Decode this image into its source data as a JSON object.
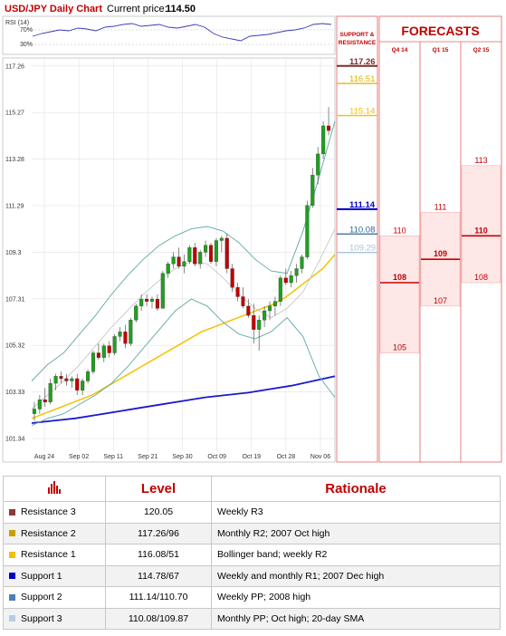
{
  "header": {
    "title": "USD/JPY Daily Chart",
    "current_price_label": "Current price:",
    "current_price": "114.50"
  },
  "rsi": {
    "label": "RSI (14)",
    "levels": [
      "70%",
      "30%"
    ]
  },
  "sr_panel": {
    "heading_line1": "SUPPORT &",
    "heading_line2": "RESISTANCE"
  },
  "forecast_panel": {
    "heading": "FORECASTS"
  },
  "colors": {
    "resistance3": "#7b2d2d",
    "resistance2": "#c8a000",
    "resistance1": "#f2c200",
    "support1": "#0000cc",
    "support2": "#336699",
    "support3": "#a8c4dc",
    "forecast": "#cc0000",
    "bull": "#1fa01f",
    "bear": "#c00000"
  },
  "chart_data": [
    {
      "type": "candlestick",
      "title": "USD/JPY Daily Chart",
      "x_ticks": [
        "Aug 24",
        "Sep 02",
        "Sep 11",
        "Sep 21",
        "Sep 30",
        "Oct 09",
        "Oct 19",
        "Oct 28",
        "Nov 06"
      ],
      "y_ticks": [
        101.34,
        103.33,
        105.32,
        107.31,
        109.3,
        111.29,
        113.28,
        115.27,
        117.26
      ],
      "ylim": [
        100.8,
        117.6
      ],
      "candles": [
        [
          102.4,
          102.9,
          102.1,
          102.6
        ],
        [
          102.6,
          103.2,
          102.4,
          103.0
        ],
        [
          103.0,
          103.5,
          102.7,
          102.9
        ],
        [
          102.9,
          103.9,
          102.8,
          103.7
        ],
        [
          103.7,
          104.1,
          103.4,
          104.0
        ],
        [
          104.0,
          104.2,
          103.7,
          103.9
        ],
        [
          103.9,
          104.1,
          103.6,
          103.8
        ],
        [
          103.8,
          104.0,
          103.5,
          103.9
        ],
        [
          103.9,
          104.1,
          103.2,
          103.4
        ],
        [
          103.4,
          103.9,
          103.2,
          103.8
        ],
        [
          103.8,
          104.3,
          103.7,
          104.2
        ],
        [
          104.2,
          105.1,
          104.1,
          105.0
        ],
        [
          105.0,
          105.4,
          104.7,
          104.8
        ],
        [
          104.8,
          105.4,
          104.6,
          105.3
        ],
        [
          105.3,
          105.5,
          104.8,
          105.0
        ],
        [
          105.0,
          105.8,
          104.9,
          105.7
        ],
        [
          105.7,
          106.1,
          105.5,
          105.9
        ],
        [
          105.9,
          106.2,
          105.2,
          105.4
        ],
        [
          105.4,
          106.5,
          105.3,
          106.4
        ],
        [
          106.4,
          107.1,
          106.3,
          107.0
        ],
        [
          107.0,
          107.5,
          106.8,
          107.3
        ],
        [
          107.3,
          107.5,
          107.0,
          107.2
        ],
        [
          107.2,
          107.4,
          106.9,
          107.3
        ],
        [
          107.3,
          107.5,
          106.8,
          106.9
        ],
        [
          106.9,
          108.5,
          106.9,
          108.4
        ],
        [
          108.4,
          108.9,
          108.2,
          108.8
        ],
        [
          108.8,
          109.3,
          108.6,
          109.1
        ],
        [
          109.1,
          109.5,
          108.6,
          108.7
        ],
        [
          108.7,
          109.2,
          108.4,
          108.9
        ],
        [
          108.9,
          109.6,
          108.8,
          109.5
        ],
        [
          109.5,
          109.7,
          108.7,
          108.8
        ],
        [
          108.8,
          109.4,
          108.6,
          109.3
        ],
        [
          109.3,
          109.8,
          109.1,
          109.6
        ],
        [
          109.6,
          109.7,
          108.8,
          108.9
        ],
        [
          108.9,
          109.9,
          108.7,
          109.8
        ],
        [
          109.8,
          110.0,
          109.3,
          109.9
        ],
        [
          109.9,
          110.1,
          108.4,
          108.6
        ],
        [
          108.6,
          108.8,
          107.6,
          107.8
        ],
        [
          107.8,
          108.0,
          107.2,
          107.4
        ],
        [
          107.4,
          107.8,
          106.9,
          107.0
        ],
        [
          107.0,
          107.3,
          106.5,
          106.6
        ],
        [
          106.6,
          107.1,
          105.4,
          106.0
        ],
        [
          106.0,
          106.6,
          105.1,
          106.4
        ],
        [
          106.4,
          107.0,
          106.1,
          106.8
        ],
        [
          106.8,
          107.2,
          106.4,
          107.0
        ],
        [
          107.0,
          107.4,
          106.6,
          107.2
        ],
        [
          107.2,
          108.3,
          107.0,
          108.2
        ],
        [
          108.2,
          108.6,
          107.9,
          108.0
        ],
        [
          108.0,
          108.5,
          107.8,
          108.3
        ],
        [
          108.3,
          108.8,
          108.0,
          108.6
        ],
        [
          108.6,
          109.2,
          108.4,
          109.1
        ],
        [
          109.1,
          111.5,
          109.0,
          111.3
        ],
        [
          111.3,
          112.9,
          111.2,
          112.6
        ],
        [
          112.6,
          113.8,
          112.2,
          113.5
        ],
        [
          113.5,
          114.9,
          113.3,
          114.7
        ],
        [
          114.7,
          115.5,
          114.3,
          114.5
        ]
      ],
      "indicators": [
        {
          "name": "50-day SMA",
          "color": "#f2c200",
          "values": [
            102.2,
            102.4,
            102.6,
            102.8,
            103.0,
            103.2,
            103.5,
            103.8,
            104.1,
            104.4,
            104.7,
            105.0,
            105.3,
            105.6,
            105.9,
            106.1,
            106.3,
            106.5,
            106.7,
            106.9,
            107.1,
            107.4,
            107.8,
            108.2,
            108.6,
            109.2
          ]
        },
        {
          "name": "200-day SMA",
          "color": "#1a1acc",
          "values": [
            102.0,
            102.1,
            102.2,
            102.35,
            102.5,
            102.65,
            102.8,
            102.95,
            103.1,
            103.2,
            103.3,
            103.45,
            103.6,
            103.8,
            104.0
          ]
        },
        {
          "name": "Bollinger upper",
          "color": "#5fa8a8",
          "values": [
            103.8,
            104.5,
            105.0,
            105.8,
            106.6,
            107.5,
            108.3,
            109.0,
            109.6,
            110.0,
            110.3,
            110.4,
            110.2,
            109.7,
            109.0,
            108.5,
            108.4,
            110.2,
            112.5,
            114.9
          ]
        },
        {
          "name": "Bollinger lower",
          "color": "#5fa8a8",
          "values": [
            101.9,
            102.2,
            102.4,
            102.8,
            103.2,
            103.7,
            104.4,
            105.2,
            106.0,
            106.8,
            107.3,
            107.0,
            106.3,
            105.8,
            105.6,
            105.9,
            106.5,
            105.7,
            104.0,
            103.1
          ]
        },
        {
          "name": "20-day SMA",
          "color": "#c8c8c8",
          "values": [
            102.6,
            103.2,
            103.8,
            104.5,
            105.3,
            106.1,
            106.8,
            107.5,
            108.1,
            108.6,
            108.9,
            108.8,
            108.2,
            107.5,
            106.9,
            106.5,
            106.9,
            107.6,
            108.9,
            110.3
          ]
        }
      ]
    },
    {
      "type": "levels",
      "title": "SUPPORT & RESISTANCE",
      "levels": [
        {
          "label": "117.26",
          "value": 117.26,
          "color": "#7b2d2d"
        },
        {
          "label": "116.51",
          "value": 116.51,
          "color": "#d9b300"
        },
        {
          "label": "115.14",
          "value": 115.14,
          "color": "#f2c200"
        },
        {
          "label": "111.14",
          "value": 111.14,
          "color": "#0000cc"
        },
        {
          "label": "110.08",
          "value": 110.08,
          "color": "#336699"
        },
        {
          "label": "109.29",
          "value": 109.29,
          "color": "#a8c4dc"
        }
      ]
    },
    {
      "type": "range",
      "title": "FORECASTS",
      "columns": [
        {
          "label": "Q4 14",
          "high": 110,
          "mid": 108,
          "low": 105
        },
        {
          "label": "Q1 15",
          "high": 111,
          "mid": 109,
          "low": 107
        },
        {
          "label": "Q2 15",
          "high": 113,
          "mid": 110,
          "low": 108
        }
      ]
    }
  ],
  "table": {
    "headers": [
      "Level",
      "Rationale"
    ],
    "rows": [
      {
        "name": "Resistance 3",
        "level": "120.05",
        "rationale": "Weekly R3",
        "color": "#8b3a3a"
      },
      {
        "name": "Resistance 2",
        "level": "117.26/96",
        "rationale": "Monthly R2; 2007 Oct high",
        "color": "#c8a000"
      },
      {
        "name": "Resistance 1",
        "level": "116.08/51",
        "rationale": "Bollinger band; weekly R2",
        "color": "#f2c200"
      },
      {
        "name": "Support 1",
        "level": "114.78/67",
        "rationale": "Weekly and monthly R1; 2007 Dec high",
        "color": "#0000cc"
      },
      {
        "name": "Support 2",
        "level": "111.14/110.70",
        "rationale": "Weekly PP; 2008 high",
        "color": "#4d7fb3"
      },
      {
        "name": "Support 3",
        "level": "110.08/109.87",
        "rationale": "Monthly PP; Oct high; 20-day SMA",
        "color": "#b8cce0"
      }
    ]
  }
}
